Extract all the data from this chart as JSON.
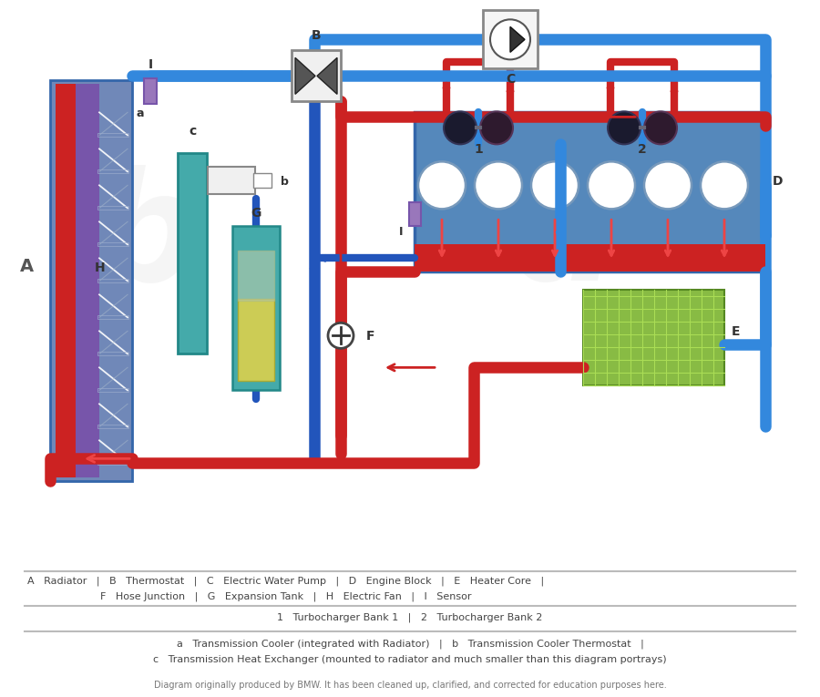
{
  "bg_color": "#ffffff",
  "blue": "#2255BB",
  "blue2": "#3388DD",
  "red": "#CC2222",
  "red2": "#EE4444",
  "purple": "#8866AA",
  "teal": "#2299AA",
  "legend_line1": "A   Radiator   |   B   Thermostat   |   C   Electric Water Pump   |   D   Engine Block   |   E   Heater Core   |",
  "legend_line2": "F   Hose Junction   |   G   Expansion Tank   |   H   Electric Fan   |   I   Sensor",
  "legend_line3": "1   Turbocharger Bank 1   |   2   Turbocharger Bank 2",
  "legend_line4a": "a   Transmission Cooler (integrated with Radiator)   |   b   Transmission Cooler Thermostat   |",
  "legend_line4b": "c   Transmission Heat Exchanger (mounted to radiator and much smaller than this diagram portrays)",
  "footer": "Diagram originally produced by BMW. It has been cleaned up, clarified, and corrected for education purposes here."
}
